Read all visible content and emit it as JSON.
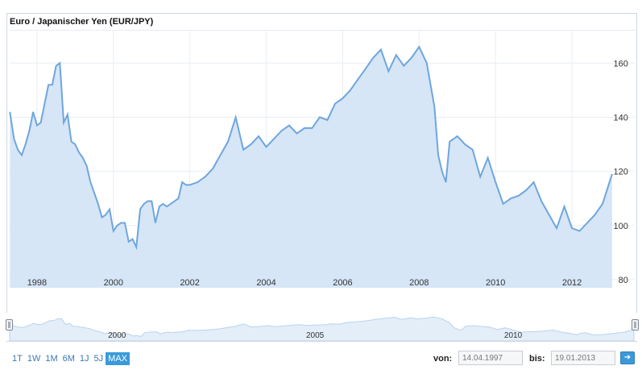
{
  "chart_title": "Euro / Japanischer Yen (EUR/JPY)",
  "range_buttons": [
    "1T",
    "1W",
    "1M",
    "6M",
    "1J",
    "5J",
    "MAX"
  ],
  "active_range": "MAX",
  "from_label": "von:",
  "from_value": "14.04.1997",
  "to_label": "bis:",
  "to_value": "19.01.2013",
  "go_icon": "arrow-right-icon",
  "colors": {
    "line": "#6ea6dc",
    "fill": "#d6e6f7",
    "grid": "#e9eef3",
    "accent": "#3a9ad9"
  },
  "navigator_labels": [
    "2000",
    "2005",
    "2010"
  ],
  "chart_data": {
    "type": "area",
    "title": "Euro / Japanischer Yen (EUR/JPY)",
    "xlabel": "",
    "ylabel": "",
    "xlim": [
      1997.29,
      2013.05
    ],
    "ylim": [
      77,
      172
    ],
    "x_ticks": [
      1998,
      2000,
      2002,
      2004,
      2006,
      2008,
      2010,
      2012
    ],
    "y_ticks": [
      80,
      100,
      120,
      140,
      160
    ],
    "y_axis_position": "right",
    "grid": true,
    "legend": "none",
    "x": [
      1997.29,
      1997.4,
      1997.5,
      1997.6,
      1997.7,
      1997.8,
      1997.9,
      1998.0,
      1998.1,
      1998.2,
      1998.3,
      1998.4,
      1998.5,
      1998.6,
      1998.7,
      1998.8,
      1998.9,
      1999.0,
      1999.1,
      1999.2,
      1999.3,
      1999.4,
      1999.5,
      1999.6,
      1999.7,
      1999.8,
      1999.9,
      2000.0,
      2000.1,
      2000.2,
      2000.3,
      2000.4,
      2000.5,
      2000.6,
      2000.7,
      2000.8,
      2000.9,
      2001.0,
      2001.1,
      2001.2,
      2001.3,
      2001.4,
      2001.5,
      2001.6,
      2001.7,
      2001.8,
      2001.9,
      2002.0,
      2002.2,
      2002.4,
      2002.6,
      2002.8,
      2003.0,
      2003.2,
      2003.4,
      2003.6,
      2003.8,
      2004.0,
      2004.2,
      2004.4,
      2004.6,
      2004.8,
      2005.0,
      2005.2,
      2005.4,
      2005.6,
      2005.8,
      2006.0,
      2006.2,
      2006.4,
      2006.6,
      2006.8,
      2007.0,
      2007.2,
      2007.4,
      2007.6,
      2007.8,
      2008.0,
      2008.2,
      2008.4,
      2008.5,
      2008.6,
      2008.7,
      2008.8,
      2009.0,
      2009.2,
      2009.4,
      2009.6,
      2009.8,
      2010.0,
      2010.2,
      2010.4,
      2010.6,
      2010.8,
      2011.0,
      2011.2,
      2011.4,
      2011.6,
      2011.8,
      2012.0,
      2012.2,
      2012.4,
      2012.6,
      2012.8,
      2013.05
    ],
    "values": [
      142,
      132,
      128,
      126,
      130,
      135,
      142,
      137,
      138,
      145,
      152,
      152,
      159,
      160,
      138,
      141,
      131,
      130,
      127,
      125,
      122,
      116,
      112,
      108,
      103,
      104,
      106,
      98,
      100,
      101,
      101,
      94,
      95,
      92,
      106,
      108,
      109,
      109,
      101,
      107,
      108,
      107,
      108,
      109,
      110,
      116,
      115,
      115,
      116,
      118,
      121,
      126,
      131,
      140,
      128,
      130,
      133,
      129,
      132,
      135,
      137,
      134,
      136,
      136,
      140,
      139,
      145,
      147,
      150,
      154,
      158,
      162,
      165,
      157,
      163,
      159,
      162,
      166,
      160,
      144,
      126,
      120,
      116,
      131,
      133,
      130,
      128,
      118,
      125,
      116,
      108,
      110,
      111,
      113,
      116,
      109,
      104,
      99,
      107,
      99,
      98,
      101,
      104,
      108,
      119
    ]
  }
}
